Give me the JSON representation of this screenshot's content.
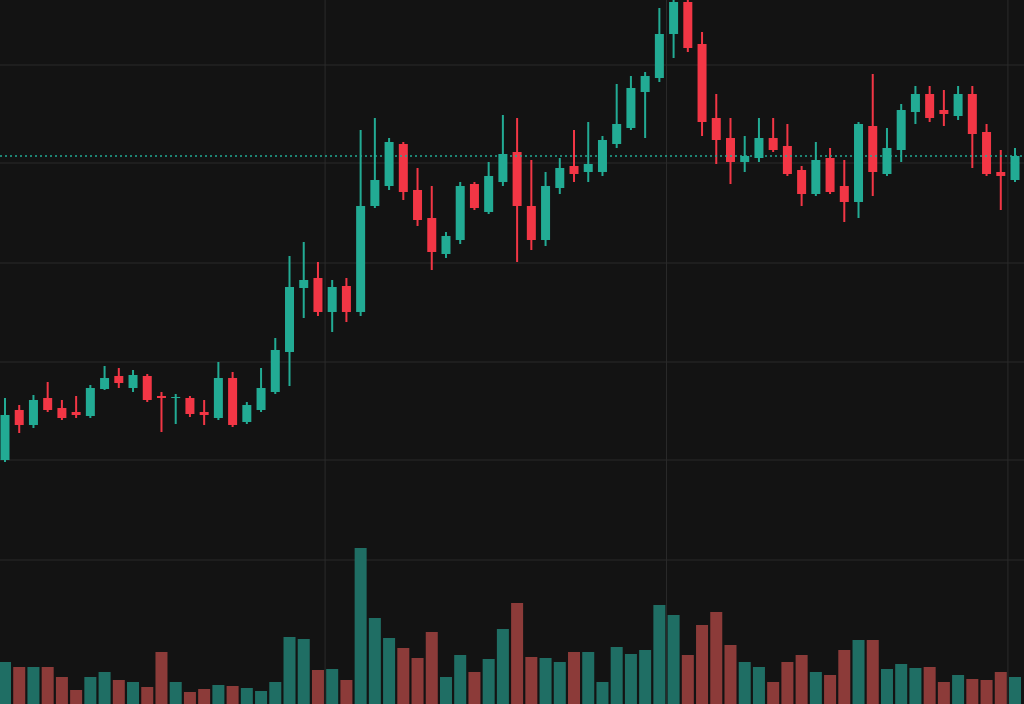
{
  "chart_data": {
    "type": "candlestick",
    "open": [
      244,
      294,
      279,
      306,
      296,
      292,
      288,
      315,
      328,
      316,
      328,
      308,
      306,
      306,
      292,
      286,
      326,
      282,
      294,
      312,
      352,
      416,
      426,
      392,
      418,
      392,
      498,
      518,
      560,
      514,
      486,
      450,
      464,
      520,
      492,
      522,
      552,
      498,
      464,
      516,
      538,
      532,
      532,
      560,
      576,
      612,
      626,
      670,
      702,
      660,
      586,
      566,
      542,
      546,
      566,
      558,
      534,
      510,
      546,
      518,
      502,
      578,
      530,
      554,
      592,
      610,
      594,
      588,
      610,
      572,
      532,
      524
    ],
    "high": [
      306,
      299,
      309,
      322,
      304,
      308,
      319,
      338,
      336,
      334,
      330,
      312,
      310,
      308,
      304,
      342,
      332,
      302,
      336,
      366,
      448,
      462,
      442,
      424,
      426,
      574,
      586,
      566,
      562,
      536,
      518,
      472,
      522,
      522,
      542,
      589,
      586,
      544,
      532,
      546,
      574,
      582,
      568,
      620,
      628,
      632,
      696,
      704,
      704,
      672,
      610,
      586,
      568,
      586,
      586,
      580,
      538,
      562,
      556,
      544,
      582,
      630,
      576,
      600,
      618,
      618,
      614,
      618,
      618,
      580,
      554,
      556
    ],
    "low": [
      242,
      271,
      276,
      292,
      284,
      286,
      286,
      314,
      316,
      312,
      302,
      272,
      280,
      287,
      279,
      284,
      277,
      280,
      292,
      310,
      318,
      386,
      388,
      372,
      382,
      388,
      496,
      514,
      504,
      478,
      434,
      446,
      460,
      494,
      490,
      518,
      442,
      454,
      458,
      510,
      522,
      522,
      528,
      556,
      574,
      566,
      622,
      646,
      652,
      568,
      540,
      520,
      532,
      542,
      552,
      528,
      498,
      508,
      510,
      482,
      486,
      508,
      528,
      542,
      580,
      582,
      578,
      584,
      536,
      528,
      494,
      522
    ],
    "close": [
      289,
      279,
      304,
      294,
      286,
      289,
      316,
      326,
      321,
      329,
      304,
      306,
      307,
      290,
      289,
      326,
      279,
      299,
      316,
      354,
      417,
      424,
      392,
      417,
      392,
      498,
      524,
      562,
      512,
      484,
      452,
      468,
      518,
      496,
      528,
      550,
      498,
      464,
      518,
      536,
      530,
      540,
      564,
      580,
      616,
      628,
      670,
      702,
      656,
      582,
      564,
      542,
      548,
      566,
      554,
      530,
      510,
      544,
      512,
      502,
      580,
      532,
      556,
      594,
      610,
      586,
      590,
      610,
      570,
      530,
      528,
      548
    ],
    "volume": [
      42,
      37,
      37,
      37,
      27,
      14,
      27,
      32,
      24,
      22,
      17,
      52,
      22,
      12,
      15,
      19,
      18,
      16,
      13,
      22,
      67,
      65,
      34,
      35,
      24,
      156,
      86,
      66,
      56,
      46,
      72,
      27,
      49,
      32,
      45,
      75,
      101,
      47,
      46,
      42,
      52,
      52,
      22,
      57,
      50,
      54,
      99,
      89,
      49,
      79,
      92,
      59,
      42,
      37,
      22,
      42,
      49,
      32,
      29,
      54,
      64,
      64,
      35,
      40,
      36,
      37,
      22,
      29,
      25,
      24,
      32,
      27
    ],
    "ylim": [
      0,
      704
    ],
    "yticks": [
      639,
      541,
      441,
      342,
      244,
      144
    ],
    "xticks": [
      22,
      46,
      70
    ],
    "grid": true,
    "price_line": true,
    "colors": {
      "up": "#22ab94",
      "down": "#f23645",
      "volume_up": "#1f6e64",
      "volume_down": "#8c3b39",
      "grid": "#2a2a2a",
      "price_line": "#22ab94"
    }
  }
}
